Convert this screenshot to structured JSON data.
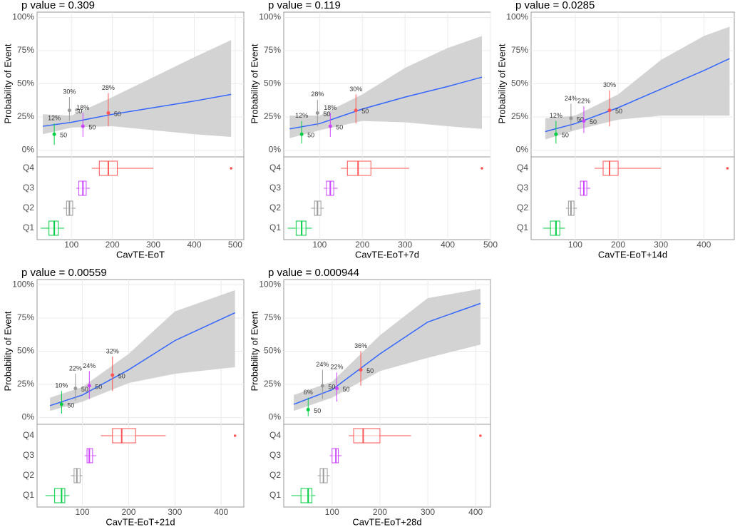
{
  "chart_data": [
    {
      "type": "logistic",
      "title": "p value = 0.309",
      "x_label": "CavTE-EoT",
      "y_label": "Probability of Event",
      "xlim": [
        16,
        521
      ],
      "xticks": [
        100,
        200,
        300,
        400,
        500
      ],
      "ylim": [
        -4,
        104
      ],
      "yticks": [
        {
          "value": 0,
          "label": "0%"
        },
        {
          "value": 25,
          "label": "25%"
        },
        {
          "value": 50,
          "label": "50%"
        },
        {
          "value": 75,
          "label": "75%"
        },
        {
          "value": 100,
          "label": "100%"
        }
      ],
      "curve": {
        "color": "#3366ff",
        "band_color": "#d3d3d3",
        "x": [
          30,
          100,
          200,
          300,
          400,
          490
        ],
        "y": [
          18,
          21,
          27,
          32,
          37,
          42
        ],
        "lower": [
          12,
          17,
          18,
          15,
          12,
          10
        ],
        "upper": [
          27,
          26,
          40,
          55,
          70,
          83
        ]
      },
      "groups": {
        "categories": [
          "Q1",
          "Q2",
          "Q3",
          "Q4"
        ],
        "colors": [
          "#00cc44",
          "#999999",
          "#cc44ff",
          "#ff5555"
        ],
        "x": [
          58,
          95,
          128,
          190
        ],
        "values": [
          12,
          30,
          18,
          28
        ],
        "value_labels": [
          "12%",
          "30%",
          "18%",
          "28%"
        ],
        "lower": [
          4,
          22,
          10,
          18
        ],
        "upper": [
          20,
          40,
          28,
          43
        ],
        "n": [
          50,
          50,
          50,
          50
        ],
        "box": [
          [
            25,
            45,
            58,
            68,
            82
          ],
          [
            80,
            88,
            95,
            103,
            110
          ],
          [
            112,
            118,
            128,
            136,
            145
          ],
          [
            150,
            168,
            190,
            212,
            300
          ]
        ],
        "outliers": [
          null,
          null,
          null,
          490
        ]
      }
    },
    {
      "type": "logistic",
      "title": "p value = 0.119",
      "x_label": "CavTE-EoT+7d",
      "y_label": "Probability of Event",
      "xlim": [
        16,
        500
      ],
      "xticks": [
        100,
        200,
        300,
        400,
        500
      ],
      "ylim": [
        -4,
        104
      ],
      "yticks": [
        {
          "value": 0,
          "label": "0%"
        },
        {
          "value": 25,
          "label": "25%"
        },
        {
          "value": 50,
          "label": "50%"
        },
        {
          "value": 75,
          "label": "75%"
        },
        {
          "value": 100,
          "label": "100%"
        }
      ],
      "curve": {
        "color": "#3366ff",
        "band_color": "#d3d3d3",
        "x": [
          30,
          100,
          200,
          300,
          400,
          480
        ],
        "y": [
          16,
          20,
          31,
          40,
          48,
          55
        ],
        "lower": [
          9,
          15,
          22,
          21,
          18,
          16
        ],
        "upper": [
          26,
          26,
          42,
          62,
          77,
          86
        ]
      },
      "groups": {
        "categories": [
          "Q1",
          "Q2",
          "Q3",
          "Q4"
        ],
        "colors": [
          "#00cc44",
          "#999999",
          "#cc44ff",
          "#ff5555"
        ],
        "x": [
          58,
          95,
          125,
          185
        ],
        "values": [
          12,
          28,
          18,
          30
        ],
        "value_labels": [
          "12%",
          "28%",
          "18%",
          "30%"
        ],
        "lower": [
          5,
          18,
          10,
          20
        ],
        "upper": [
          22,
          38,
          28,
          42
        ],
        "n": [
          50,
          50,
          50,
          50
        ],
        "box": [
          [
            25,
            45,
            58,
            68,
            82
          ],
          [
            80,
            88,
            95,
            103,
            110
          ],
          [
            110,
            116,
            125,
            133,
            142
          ],
          [
            150,
            165,
            190,
            220,
            310
          ]
        ],
        "outliers": [
          null,
          null,
          null,
          480
        ]
      }
    },
    {
      "type": "logistic",
      "title": "p value = 0.0285",
      "x_label": "CavTE-EoT+14d",
      "y_label": "Probability of Event",
      "xlim": [
        -3,
        471
      ],
      "xticks": [
        100,
        200,
        300,
        400
      ],
      "ylim": [
        -4,
        104
      ],
      "yticks": [
        {
          "value": 0,
          "label": "0%"
        },
        {
          "value": 25,
          "label": "25%"
        },
        {
          "value": 50,
          "label": "50%"
        },
        {
          "value": 75,
          "label": "75%"
        },
        {
          "value": 100,
          "label": "100%"
        }
      ],
      "curve": {
        "color": "#3366ff",
        "band_color": "#d3d3d3",
        "x": [
          30,
          100,
          200,
          300,
          400,
          460
        ],
        "y": [
          14,
          20,
          32,
          46,
          60,
          69
        ],
        "lower": [
          8,
          15,
          23,
          26,
          26,
          26
        ],
        "upper": [
          24,
          26,
          42,
          68,
          86,
          93
        ]
      },
      "groups": {
        "categories": [
          "Q1",
          "Q2",
          "Q3",
          "Q4"
        ],
        "colors": [
          "#00cc44",
          "#999999",
          "#cc44ff",
          "#ff5555"
        ],
        "x": [
          55,
          90,
          120,
          180
        ],
        "values": [
          12,
          24,
          22,
          30
        ],
        "value_labels": [
          "12%",
          "24%",
          "22%",
          "30%"
        ],
        "lower": [
          5,
          15,
          13,
          18
        ],
        "upper": [
          22,
          35,
          33,
          45
        ],
        "n": [
          50,
          50,
          50,
          50
        ],
        "box": [
          [
            25,
            42,
            55,
            64,
            76
          ],
          [
            78,
            84,
            90,
            97,
            104
          ],
          [
            106,
            112,
            120,
            127,
            135
          ],
          [
            145,
            165,
            180,
            200,
            300
          ]
        ],
        "outliers": [
          null,
          null,
          null,
          455
        ]
      }
    },
    {
      "type": "logistic",
      "title": "p value = 0.00559",
      "x_label": "CavTE-EoT+21d",
      "y_label": "Probability of Event",
      "xlim": [
        2,
        449
      ],
      "xticks": [
        100,
        200,
        300,
        400
      ],
      "ylim": [
        -4,
        104
      ],
      "yticks": [
        {
          "value": 0,
          "label": "0%"
        },
        {
          "value": 25,
          "label": "25%"
        },
        {
          "value": 50,
          "label": "50%"
        },
        {
          "value": 75,
          "label": "75%"
        },
        {
          "value": 100,
          "label": "100%"
        }
      ],
      "curve": {
        "color": "#3366ff",
        "band_color": "#d3d3d3",
        "x": [
          30,
          100,
          200,
          300,
          430
        ],
        "y": [
          9,
          17,
          36,
          58,
          79
        ],
        "lower": [
          5,
          12,
          26,
          33,
          38
        ],
        "upper": [
          15,
          23,
          48,
          80,
          96
        ]
      },
      "groups": {
        "categories": [
          "Q1",
          "Q2",
          "Q3",
          "Q4"
        ],
        "colors": [
          "#00cc44",
          "#999999",
          "#cc44ff",
          "#ff5555"
        ],
        "x": [
          55,
          85,
          115,
          165
        ],
        "values": [
          10,
          22,
          24,
          32
        ],
        "value_labels": [
          "10%",
          "22%",
          "24%",
          "32%"
        ],
        "lower": [
          3,
          13,
          14,
          20
        ],
        "upper": [
          20,
          33,
          35,
          46
        ],
        "n": [
          50,
          50,
          50,
          50
        ],
        "box": [
          [
            20,
            40,
            55,
            62,
            72
          ],
          [
            75,
            82,
            88,
            95,
            100
          ],
          [
            105,
            110,
            115,
            122,
            130
          ],
          [
            140,
            165,
            185,
            215,
            280
          ]
        ],
        "outliers": [
          null,
          null,
          null,
          430
        ]
      }
    },
    {
      "type": "logistic",
      "title": "p value = 0.000944",
      "x_label": "CavTE-EoT+28d",
      "y_label": "Probability of Event",
      "xlim": [
        -1,
        431
      ],
      "xticks": [
        100,
        200,
        300,
        400
      ],
      "ylim": [
        -4,
        104
      ],
      "yticks": [
        {
          "value": 0,
          "label": "0%"
        },
        {
          "value": 25,
          "label": "25%"
        },
        {
          "value": 50,
          "label": "50%"
        },
        {
          "value": 75,
          "label": "75%"
        },
        {
          "value": 100,
          "label": "100%"
        }
      ],
      "curve": {
        "color": "#3366ff",
        "band_color": "#d3d3d3",
        "x": [
          20,
          100,
          200,
          300,
          410
        ],
        "y": [
          10,
          21,
          48,
          72,
          86
        ],
        "lower": [
          5,
          15,
          35,
          45,
          55
        ],
        "upper": [
          17,
          27,
          62,
          90,
          97
        ]
      },
      "groups": {
        "categories": [
          "Q1",
          "Q2",
          "Q3",
          "Q4"
        ],
        "colors": [
          "#00cc44",
          "#999999",
          "#cc44ff",
          "#ff5555"
        ],
        "x": [
          50,
          80,
          110,
          160
        ],
        "values": [
          6,
          24,
          22,
          36
        ],
        "value_labels": [
          "6%",
          "24%",
          "22%",
          "36%"
        ],
        "lower": [
          1,
          14,
          12,
          24
        ],
        "upper": [
          15,
          36,
          34,
          50
        ],
        "n": [
          50,
          50,
          50,
          50
        ],
        "box": [
          [
            15,
            35,
            50,
            58,
            65
          ],
          [
            70,
            75,
            82,
            90,
            95
          ],
          [
            95,
            100,
            108,
            113,
            120
          ],
          [
            135,
            145,
            165,
            200,
            265
          ]
        ],
        "outliers": [
          null,
          null,
          null,
          410
        ]
      }
    }
  ]
}
